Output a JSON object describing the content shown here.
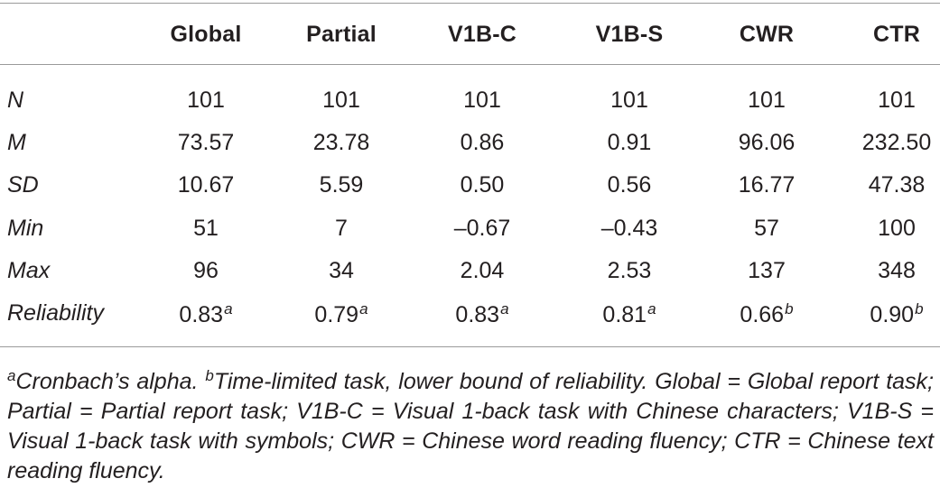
{
  "table": {
    "headers": [
      "",
      "Global",
      "Partial",
      "V1B-C",
      "V1B-S",
      "CWR",
      "CTR"
    ],
    "rows": [
      {
        "label": "N",
        "cells": [
          {
            "v": "101",
            "s": ""
          },
          {
            "v": "101",
            "s": ""
          },
          {
            "v": "101",
            "s": ""
          },
          {
            "v": "101",
            "s": ""
          },
          {
            "v": "101",
            "s": ""
          },
          {
            "v": "101",
            "s": ""
          }
        ]
      },
      {
        "label": "M",
        "cells": [
          {
            "v": "73.57",
            "s": ""
          },
          {
            "v": "23.78",
            "s": ""
          },
          {
            "v": "0.86",
            "s": ""
          },
          {
            "v": "0.91",
            "s": ""
          },
          {
            "v": "96.06",
            "s": ""
          },
          {
            "v": "232.50",
            "s": ""
          }
        ]
      },
      {
        "label": "SD",
        "cells": [
          {
            "v": "10.67",
            "s": ""
          },
          {
            "v": "5.59",
            "s": ""
          },
          {
            "v": "0.50",
            "s": ""
          },
          {
            "v": "0.56",
            "s": ""
          },
          {
            "v": "16.77",
            "s": ""
          },
          {
            "v": "47.38",
            "s": ""
          }
        ]
      },
      {
        "label": "Min",
        "cells": [
          {
            "v": "51",
            "s": ""
          },
          {
            "v": "7",
            "s": ""
          },
          {
            "v": "–0.67",
            "s": ""
          },
          {
            "v": "–0.43",
            "s": ""
          },
          {
            "v": "57",
            "s": ""
          },
          {
            "v": "100",
            "s": ""
          }
        ]
      },
      {
        "label": "Max",
        "cells": [
          {
            "v": "96",
            "s": ""
          },
          {
            "v": "34",
            "s": ""
          },
          {
            "v": "2.04",
            "s": ""
          },
          {
            "v": "2.53",
            "s": ""
          },
          {
            "v": "137",
            "s": ""
          },
          {
            "v": "348",
            "s": ""
          }
        ]
      },
      {
        "label": "Reliability",
        "cells": [
          {
            "v": "0.83",
            "s": "a"
          },
          {
            "v": "0.79",
            "s": "a"
          },
          {
            "v": "0.83",
            "s": "a"
          },
          {
            "v": "0.81",
            "s": "a"
          },
          {
            "v": "0.66",
            "s": "b"
          },
          {
            "v": "0.90",
            "s": "b"
          }
        ]
      }
    ]
  },
  "footnote": {
    "a_mark": "a",
    "a_text": "Cronbach’s alpha. ",
    "b_mark": "b",
    "b_text": "Time-limited task, lower bound of reliability. Global = Global report task; Partial = Partial report task; V1B-C = Visual 1-back task with Chinese characters; V1B-S = Visual 1-back task with symbols; CWR = Chinese word reading fluency; CTR = Chinese text reading fluency."
  }
}
